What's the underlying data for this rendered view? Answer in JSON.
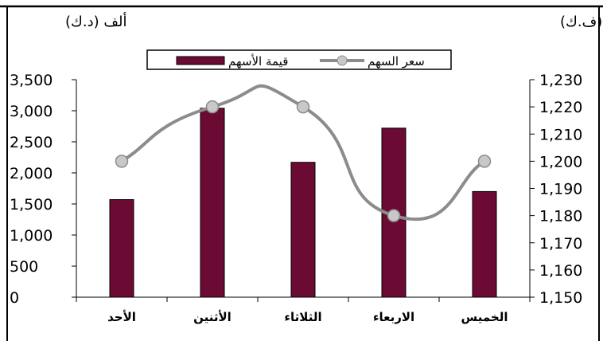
{
  "chart_data": {
    "type": "bar",
    "title": "",
    "categories": [
      "الأحد",
      "الأثنين",
      "الثلاثاء",
      "الاربعاء",
      "الخميس"
    ],
    "series": [
      {
        "name": "قيمة الأسهم",
        "type": "bar",
        "axis": "left",
        "color": "#6b0a33",
        "values": [
          1570,
          3040,
          2170,
          2720,
          1700
        ]
      },
      {
        "name": "سعر السهم",
        "type": "line",
        "axis": "right",
        "color": "#8c8c8c",
        "marker_color": "#c8c8c8",
        "smooth": true,
        "values": [
          1200,
          1220,
          1220,
          1180,
          1200
        ]
      }
    ],
    "y_left": {
      "label": "ألف (د.ك)",
      "min": 0,
      "max": 3500,
      "step": 500,
      "ticks": [
        "0",
        "500",
        "1,000",
        "1,500",
        "2,000",
        "2,500",
        "3,000",
        "3,500"
      ]
    },
    "y_right": {
      "label": "(ف.ك)",
      "min": 1150,
      "max": 1230,
      "step": 10,
      "ticks": [
        "1,150",
        "1,160",
        "1,170",
        "1,180",
        "1,190",
        "1,200",
        "1,210",
        "1,220",
        "1,230"
      ]
    },
    "grid": false,
    "legend_position": "top-center"
  }
}
